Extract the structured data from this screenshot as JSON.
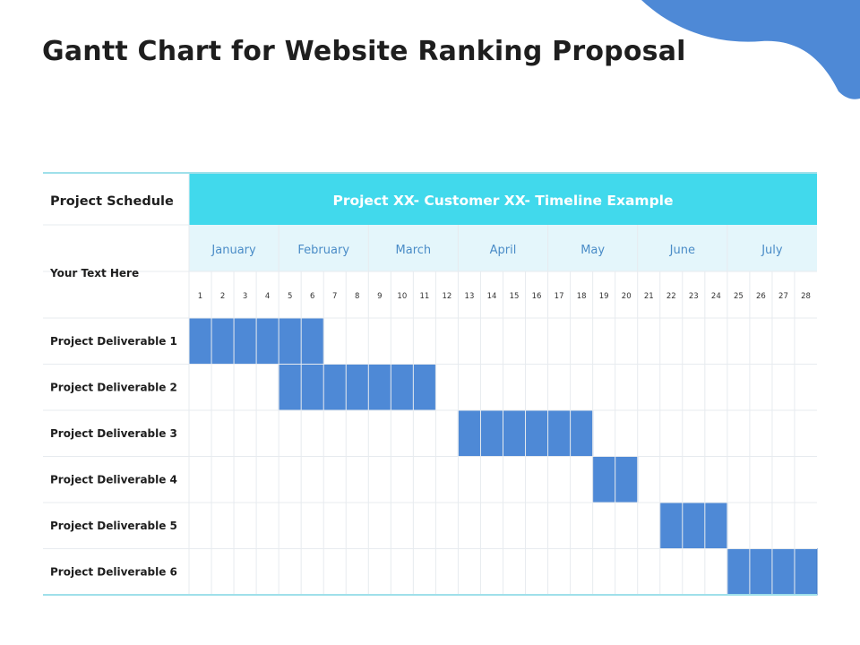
{
  "page": {
    "title": "Gantt Chart for Website Ranking Proposal"
  },
  "colors": {
    "accent_blob": "#4e89d6",
    "header_bg": "#41d9ec",
    "header_text": "#ffffff",
    "month_bg": "#e4f6fb",
    "month_text": "#4a8cc7",
    "bar": "#4e89d6",
    "grid": "#e7ebef",
    "rule": "#9fe0ea"
  },
  "chart_data": {
    "type": "gantt",
    "corner_label": "Project Schedule",
    "header": "Project XX- Customer XX- Timeline Example",
    "subheader_label": "Your Text Here",
    "months": [
      "January",
      "February",
      "March",
      "April",
      "May",
      "June",
      "July"
    ],
    "columns": [
      1,
      2,
      3,
      4,
      5,
      6,
      7,
      8,
      9,
      10,
      11,
      12,
      13,
      14,
      15,
      16,
      17,
      18,
      19,
      20,
      21,
      22,
      23,
      24,
      25,
      26,
      27,
      28
    ],
    "tasks": [
      {
        "name": "Project Deliverable 1",
        "start": 1,
        "end": 6
      },
      {
        "name": "Project Deliverable 2",
        "start": 5,
        "end": 11
      },
      {
        "name": "Project Deliverable 3",
        "start": 13,
        "end": 18
      },
      {
        "name": "Project Deliverable 4",
        "start": 19,
        "end": 20
      },
      {
        "name": "Project Deliverable 5",
        "start": 22,
        "end": 24
      },
      {
        "name": "Project Deliverable 6",
        "start": 25,
        "end": 28
      }
    ]
  }
}
